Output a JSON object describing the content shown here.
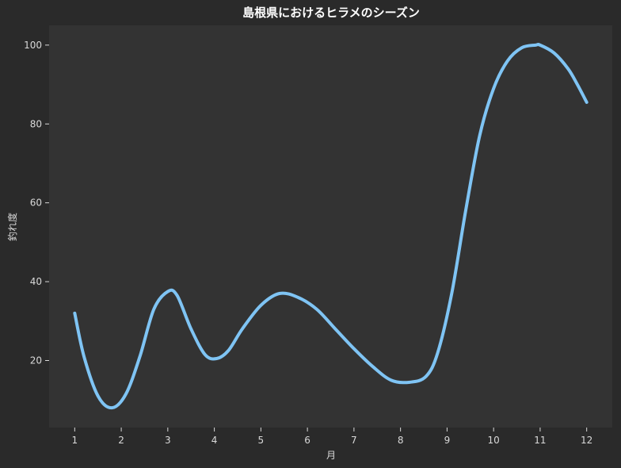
{
  "chart_data": {
    "type": "line",
    "title": "島根県におけるヒラメのシーズン",
    "xlabel": "月",
    "ylabel": "釣れ度",
    "x_ticks": [
      1,
      2,
      3,
      4,
      5,
      6,
      7,
      8,
      9,
      10,
      11,
      12
    ],
    "y_ticks": [
      20,
      40,
      60,
      80,
      100
    ],
    "xlim": [
      0.45,
      12.55
    ],
    "ylim": [
      3,
      105
    ],
    "grid": false,
    "series": [
      {
        "color": "#7fc4f4",
        "x": [
          1,
          1.2,
          1.5,
          1.8,
          2.1,
          2.4,
          2.7,
          3.0,
          3.2,
          3.5,
          3.8,
          4.05,
          4.3,
          4.6,
          5.0,
          5.4,
          5.8,
          6.2,
          6.6,
          7.0,
          7.4,
          7.8,
          8.2,
          8.55,
          8.8,
          9.1,
          9.4,
          9.7,
          10.0,
          10.3,
          10.6,
          10.9,
          11.0,
          11.3,
          11.6,
          11.8,
          12.0
        ],
        "y": [
          32,
          21,
          11,
          8,
          11.5,
          21,
          33,
          37.5,
          36.5,
          28,
          21.5,
          20.5,
          22.5,
          28,
          34,
          37,
          36,
          33,
          28,
          23,
          18.5,
          15,
          14.5,
          16,
          22,
          37,
          58,
          77,
          89,
          96,
          99.3,
          100,
          100,
          98,
          94,
          90,
          85.5
        ]
      }
    ]
  }
}
